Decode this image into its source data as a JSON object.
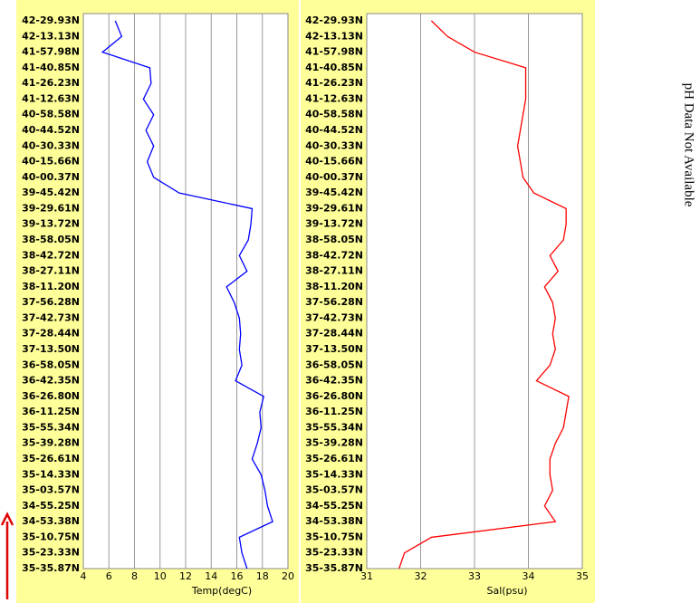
{
  "chart_data": [
    {
      "type": "line",
      "orientation": "horizontal",
      "xlabel": "Temp(degC)",
      "categories": [
        "42-29.93N",
        "42-13.13N",
        "41-57.98N",
        "41-40.85N",
        "41-26.23N",
        "41-12.63N",
        "40-58.58N",
        "40-44.52N",
        "40-30.33N",
        "40-15.66N",
        "40-00.37N",
        "39-45.42N",
        "39-29.61N",
        "39-13.72N",
        "38-58.05N",
        "38-42.72N",
        "38-27.11N",
        "38-11.20N",
        "37-56.28N",
        "37-42.73N",
        "37-28.44N",
        "37-13.50N",
        "36-58.05N",
        "36-42.35N",
        "36-26.80N",
        "36-11.25N",
        "35-55.34N",
        "35-39.28N",
        "35-26.61N",
        "35-14.33N",
        "35-03.57N",
        "34-55.25N",
        "34-53.38N",
        "35-10.75N",
        "35-23.33N",
        "35-35.87N"
      ],
      "values": [
        6.5,
        7.0,
        5.5,
        9.2,
        9.3,
        8.7,
        9.5,
        8.9,
        9.5,
        9.0,
        9.5,
        11.5,
        17.2,
        17.1,
        16.9,
        16.2,
        16.8,
        15.2,
        15.8,
        16.2,
        16.3,
        16.2,
        16.4,
        15.9,
        18.1,
        17.8,
        17.9,
        17.6,
        17.2,
        17.9,
        18.2,
        18.4,
        18.8,
        16.2,
        16.4,
        16.8
      ],
      "color": "#0000ff",
      "xlim": [
        4,
        20
      ],
      "xticks": [
        4,
        6,
        8,
        10,
        12,
        14,
        16,
        18,
        20
      ],
      "grid": true
    },
    {
      "type": "line",
      "orientation": "horizontal",
      "xlabel": "Sal(psu)",
      "categories": [
        "42-29.93N",
        "42-13.13N",
        "41-57.98N",
        "41-40.85N",
        "41-26.23N",
        "41-12.63N",
        "40-58.58N",
        "40-44.52N",
        "40-30.33N",
        "40-15.66N",
        "40-00.37N",
        "39-45.42N",
        "39-29.61N",
        "39-13.72N",
        "38-58.05N",
        "38-42.72N",
        "38-27.11N",
        "38-11.20N",
        "37-56.28N",
        "37-42.73N",
        "37-28.44N",
        "37-13.50N",
        "36-58.05N",
        "36-42.35N",
        "36-26.80N",
        "36-11.25N",
        "35-55.34N",
        "35-39.28N",
        "35-26.61N",
        "35-14.33N",
        "35-03.57N",
        "34-55.25N",
        "34-53.38N",
        "35-10.75N",
        "35-23.33N",
        "35-35.87N"
      ],
      "values": [
        32.2,
        32.5,
        33.0,
        33.95,
        33.95,
        33.95,
        33.9,
        33.85,
        33.8,
        33.85,
        33.9,
        34.1,
        34.7,
        34.7,
        34.65,
        34.4,
        34.55,
        34.3,
        34.45,
        34.5,
        34.45,
        34.5,
        34.4,
        34.15,
        34.75,
        34.7,
        34.65,
        34.5,
        34.4,
        34.4,
        34.45,
        34.3,
        34.5,
        32.2,
        31.7,
        31.6
      ],
      "color": "#ff0000",
      "xlim": [
        31,
        35
      ],
      "xticks": [
        31,
        32,
        33,
        34,
        35
      ],
      "grid": true,
      "annotation": "pH Data Not Available"
    }
  ]
}
